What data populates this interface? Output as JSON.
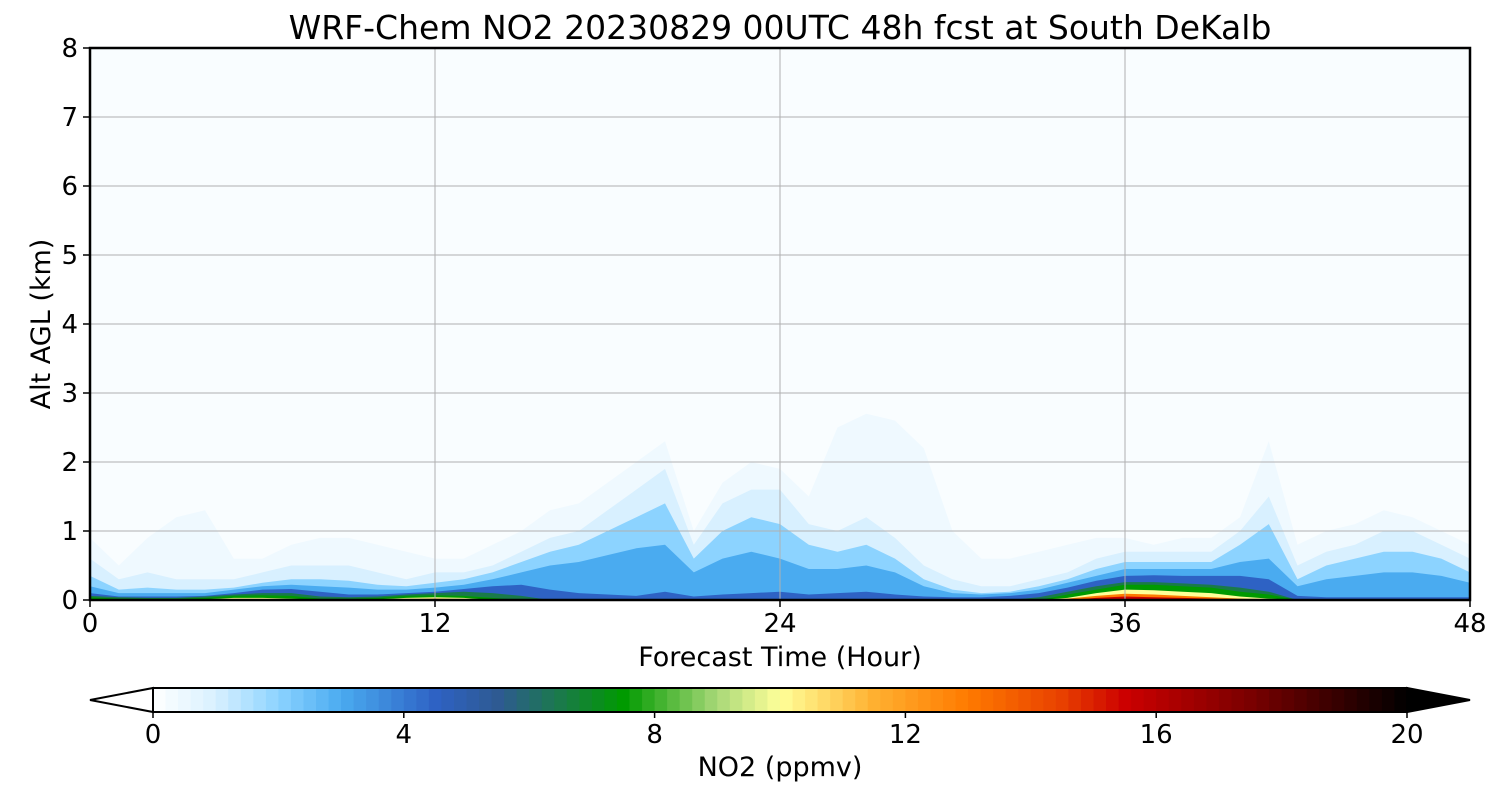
{
  "chart_data": {
    "type": "heatmap",
    "title": "WRF-Chem NO2  20230829 00UTC 48h fcst at South DeKalb",
    "xlabel": "Forecast Time (Hour)",
    "ylabel": "Alt AGL (km)",
    "xlim": [
      0,
      48
    ],
    "ylim": [
      0,
      8
    ],
    "xticks": [
      0,
      12,
      24,
      36,
      48
    ],
    "yticks": [
      0,
      1,
      2,
      3,
      4,
      5,
      6,
      7,
      8
    ],
    "grid": true,
    "colorbar": {
      "label": "NO2  (ppmv)",
      "range": [
        0,
        20
      ],
      "ticks": [
        0,
        4,
        8,
        12,
        16,
        20
      ],
      "extend": "both",
      "stops": [
        {
          "v": 0,
          "c": "#ffffff"
        },
        {
          "v": 1,
          "c": "#d8f0ff"
        },
        {
          "v": 2,
          "c": "#8cd3ff"
        },
        {
          "v": 3,
          "c": "#4aabf0"
        },
        {
          "v": 4.5,
          "c": "#2e62c4"
        },
        {
          "v": 5.5,
          "c": "#2e5a92"
        },
        {
          "v": 6.5,
          "c": "#1a7a4a"
        },
        {
          "v": 7.5,
          "c": "#009a00"
        },
        {
          "v": 9,
          "c": "#a8d878"
        },
        {
          "v": 10,
          "c": "#ffff99"
        },
        {
          "v": 11.5,
          "c": "#ffb030"
        },
        {
          "v": 13,
          "c": "#ff7a00"
        },
        {
          "v": 14.5,
          "c": "#e84000"
        },
        {
          "v": 15.5,
          "c": "#cc0000"
        },
        {
          "v": 17.5,
          "c": "#7a0000"
        },
        {
          "v": 20,
          "c": "#000000"
        }
      ]
    },
    "background_value": 0.15,
    "field_layers": [
      {
        "level": 0.4,
        "height_km": [
          0.9,
          0.5,
          0.9,
          1.2,
          1.3,
          0.6,
          0.6,
          0.8,
          0.9,
          0.9,
          0.8,
          0.7,
          0.6,
          0.6,
          0.8,
          1.0,
          1.3,
          1.4,
          1.7,
          2.0,
          2.3,
          1.0,
          1.7,
          2.0,
          1.9,
          1.5,
          2.5,
          2.7,
          2.6,
          2.2,
          1.0,
          0.6,
          0.6,
          0.7,
          0.8,
          0.9,
          0.9,
          0.8,
          0.9,
          0.9,
          1.2,
          2.3,
          0.8,
          1.0,
          1.1,
          1.3,
          1.2,
          1.0,
          0.8
        ]
      },
      {
        "level": 1.0,
        "height_km": [
          0.6,
          0.3,
          0.4,
          0.3,
          0.3,
          0.3,
          0.4,
          0.5,
          0.5,
          0.5,
          0.4,
          0.3,
          0.4,
          0.4,
          0.5,
          0.7,
          0.9,
          1.0,
          1.3,
          1.6,
          1.9,
          0.8,
          1.4,
          1.6,
          1.6,
          1.1,
          1.0,
          1.2,
          0.9,
          0.5,
          0.3,
          0.2,
          0.2,
          0.3,
          0.4,
          0.6,
          0.7,
          0.7,
          0.7,
          0.7,
          1.0,
          1.5,
          0.5,
          0.7,
          0.8,
          1.0,
          1.0,
          0.8,
          0.6
        ]
      },
      {
        "level": 2.0,
        "height_km": [
          0.35,
          0.15,
          0.18,
          0.15,
          0.15,
          0.18,
          0.25,
          0.3,
          0.3,
          0.28,
          0.22,
          0.2,
          0.25,
          0.3,
          0.4,
          0.55,
          0.7,
          0.8,
          1.0,
          1.2,
          1.4,
          0.6,
          1.0,
          1.2,
          1.1,
          0.8,
          0.7,
          0.8,
          0.6,
          0.3,
          0.15,
          0.1,
          0.12,
          0.2,
          0.3,
          0.45,
          0.55,
          0.55,
          0.55,
          0.55,
          0.8,
          1.1,
          0.3,
          0.5,
          0.6,
          0.7,
          0.7,
          0.6,
          0.4
        ]
      },
      {
        "level": 3.0,
        "height_km": [
          0.2,
          0.1,
          0.1,
          0.1,
          0.1,
          0.15,
          0.2,
          0.22,
          0.2,
          0.18,
          0.15,
          0.15,
          0.18,
          0.22,
          0.3,
          0.4,
          0.5,
          0.55,
          0.65,
          0.75,
          0.8,
          0.4,
          0.6,
          0.7,
          0.6,
          0.45,
          0.45,
          0.5,
          0.4,
          0.2,
          0.1,
          0.08,
          0.1,
          0.15,
          0.25,
          0.35,
          0.45,
          0.45,
          0.45,
          0.45,
          0.55,
          0.6,
          0.2,
          0.3,
          0.35,
          0.4,
          0.4,
          0.35,
          0.25
        ]
      },
      {
        "level": 4.5,
        "height_km": [
          0.1,
          0.05,
          0.05,
          0.05,
          0.06,
          0.1,
          0.15,
          0.16,
          0.12,
          0.08,
          0.08,
          0.1,
          0.12,
          0.16,
          0.2,
          0.22,
          0.15,
          0.1,
          0.08,
          0.06,
          0.12,
          0.05,
          0.08,
          0.1,
          0.12,
          0.08,
          0.1,
          0.12,
          0.08,
          0.05,
          0.04,
          0.04,
          0.06,
          0.1,
          0.18,
          0.28,
          0.35,
          0.36,
          0.35,
          0.35,
          0.35,
          0.3,
          0.06,
          0.04,
          0.04,
          0.04,
          0.04,
          0.04,
          0.04
        ]
      },
      {
        "level": 6.5,
        "height_km": [
          0.06,
          0.04,
          0.03,
          0.03,
          0.05,
          0.08,
          0.1,
          0.1,
          0.05,
          0.04,
          0.05,
          0.08,
          0.1,
          0.12,
          0.1,
          0.06,
          0,
          0,
          0,
          0,
          0,
          0,
          0,
          0,
          0,
          0,
          0,
          0,
          0,
          0,
          0,
          0,
          0,
          0.04,
          0.12,
          0.2,
          0.26,
          0.26,
          0.24,
          0.22,
          0.18,
          0.12,
          0,
          0,
          0,
          0,
          0,
          0,
          0
        ]
      },
      {
        "level": 7.5,
        "height_km": [
          0.04,
          0.02,
          0.02,
          0.02,
          0.03,
          0.06,
          0.07,
          0.06,
          0.02,
          0.02,
          0.03,
          0.06,
          0.07,
          0.06,
          0.03,
          0,
          0,
          0,
          0,
          0,
          0,
          0,
          0,
          0,
          0,
          0,
          0,
          0,
          0,
          0,
          0,
          0,
          0,
          0,
          0.08,
          0.15,
          0.22,
          0.22,
          0.2,
          0.18,
          0.12,
          0.08,
          0,
          0,
          0,
          0,
          0,
          0,
          0
        ]
      },
      {
        "level": 10.0,
        "height_km": [
          0,
          0,
          0,
          0,
          0.01,
          0.03,
          0.03,
          0.02,
          0,
          0,
          0.01,
          0.03,
          0.04,
          0.03,
          0,
          0,
          0,
          0,
          0,
          0,
          0,
          0,
          0,
          0,
          0,
          0,
          0,
          0,
          0,
          0,
          0,
          0,
          0,
          0,
          0.03,
          0.1,
          0.15,
          0.14,
          0.12,
          0.1,
          0.05,
          0.02,
          0,
          0,
          0,
          0,
          0,
          0,
          0
        ]
      },
      {
        "level": 13.0,
        "height_km": [
          0,
          0,
          0,
          0,
          0,
          0.01,
          0.01,
          0,
          0,
          0,
          0,
          0.01,
          0.02,
          0.01,
          0,
          0,
          0,
          0,
          0,
          0,
          0,
          0,
          0,
          0,
          0,
          0,
          0,
          0,
          0,
          0,
          0,
          0,
          0,
          0,
          0.02,
          0.06,
          0.09,
          0.08,
          0.06,
          0.04,
          0.02,
          0,
          0,
          0,
          0,
          0,
          0,
          0,
          0
        ]
      },
      {
        "level": 15.5,
        "height_km": [
          0,
          0,
          0,
          0,
          0,
          0,
          0,
          0,
          0,
          0,
          0,
          0,
          0.01,
          0,
          0,
          0,
          0,
          0,
          0,
          0,
          0,
          0,
          0,
          0,
          0,
          0,
          0,
          0,
          0,
          0,
          0,
          0,
          0,
          0,
          0,
          0.03,
          0.05,
          0.04,
          0.03,
          0.02,
          0,
          0,
          0,
          0,
          0,
          0,
          0,
          0,
          0
        ]
      }
    ]
  }
}
